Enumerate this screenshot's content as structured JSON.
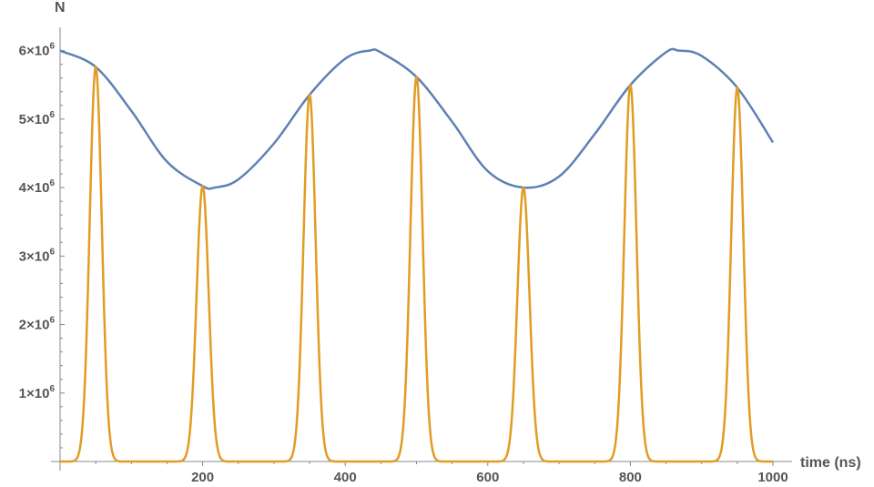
{
  "chart_data": {
    "type": "line",
    "xlabel": "time (ns)",
    "ylabel": "N",
    "xlim": [
      0,
      1000
    ],
    "ylim": [
      0,
      6500000
    ],
    "grid": false,
    "x_ticks": [
      {
        "value": 200,
        "label": "200"
      },
      {
        "value": 400,
        "label": "400"
      },
      {
        "value": 600,
        "label": "600"
      },
      {
        "value": 800,
        "label": "800"
      },
      {
        "value": 1000,
        "label": "1000"
      }
    ],
    "y_ticks": [
      {
        "value": 1000000,
        "mantissa": "1",
        "times": "×10",
        "exponent": "6"
      },
      {
        "value": 2000000,
        "mantissa": "2",
        "times": "×10",
        "exponent": "6"
      },
      {
        "value": 3000000,
        "mantissa": "3",
        "times": "×10",
        "exponent": "6"
      },
      {
        "value": 4000000,
        "mantissa": "4",
        "times": "×10",
        "exponent": "6"
      },
      {
        "value": 5000000,
        "mantissa": "5",
        "times": "×10",
        "exponent": "6"
      },
      {
        "value": 6000000,
        "mantissa": "6",
        "times": "×10",
        "exponent": "6"
      }
    ],
    "series": [
      {
        "color": "#5e81b5",
        "x": [
          0,
          50,
          100,
          150,
          200,
          217,
          250,
          300,
          350,
          400,
          434,
          450,
          500,
          550,
          600,
          651,
          700,
          750,
          800,
          850,
          868,
          900,
          950,
          1000
        ],
        "values": [
          6000000,
          5762000,
          5120000,
          4378000,
          4023000,
          4000000,
          4119000,
          4644000,
          5356000,
          5882000,
          6000000,
          5974000,
          5615000,
          4961000,
          4240000,
          4000000,
          4162000,
          4782000,
          5498000,
          5977000,
          6000000,
          5922000,
          5460000,
          4660000
        ]
      },
      {
        "color": "#e19c24",
        "peaks": [
          {
            "x": 50,
            "y": 5762000
          },
          {
            "x": 200,
            "y": 4023000
          },
          {
            "x": 350,
            "y": 5356000
          },
          {
            "x": 500,
            "y": 5615000
          },
          {
            "x": 650,
            "y": 4000000
          },
          {
            "x": 800,
            "y": 5498000
          },
          {
            "x": 950,
            "y": 5460000
          }
        ],
        "peak_sigma": 8.5
      }
    ]
  }
}
